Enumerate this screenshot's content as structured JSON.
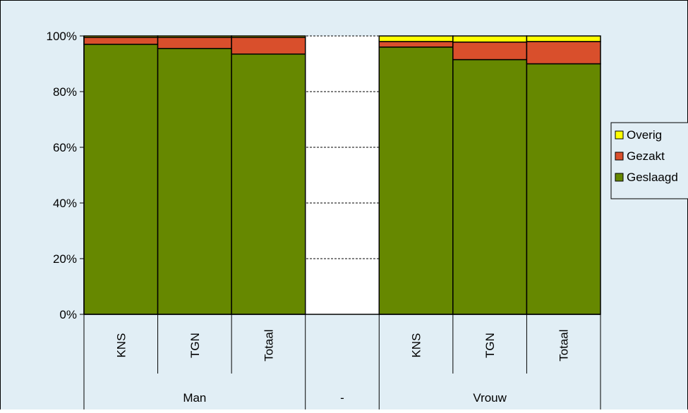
{
  "chart_data": {
    "type": "bar",
    "stacked": true,
    "normalized": true,
    "categories": [
      "KNS",
      "TGN",
      "Totaal",
      "",
      "KNS",
      "TGN",
      "Totaal"
    ],
    "groups": [
      {
        "label": "Man",
        "categories": [
          "KNS",
          "TGN",
          "Totaal"
        ]
      },
      {
        "label": "-",
        "categories": [
          ""
        ]
      },
      {
        "label": "Vrouw",
        "categories": [
          "KNS",
          "TGN",
          "Totaal"
        ]
      }
    ],
    "series": [
      {
        "name": "Geslaagd",
        "color": "#668800",
        "values": [
          97,
          95.5,
          93.5,
          0,
          96,
          91.5,
          90
        ]
      },
      {
        "name": "Gezakt",
        "color": "#d94f2c",
        "values": [
          2.5,
          4,
          6,
          0,
          2,
          6.3,
          8
        ]
      },
      {
        "name": "Overig",
        "color": "#ffff00",
        "values": [
          0.5,
          0.5,
          0.5,
          0,
          2,
          2.2,
          2
        ]
      }
    ],
    "y_tick_labels": [
      "0%",
      "20%",
      "40%",
      "60%",
      "80%",
      "100%"
    ],
    "ylim": [
      0,
      100
    ],
    "grid": true,
    "legend": "right",
    "legend_order": [
      "Overig",
      "Gezakt",
      "Geslaagd"
    ],
    "title": "",
    "xlabel": "",
    "ylabel": "",
    "colors": {
      "background": "#e1eef5",
      "frame": "#000000"
    }
  }
}
